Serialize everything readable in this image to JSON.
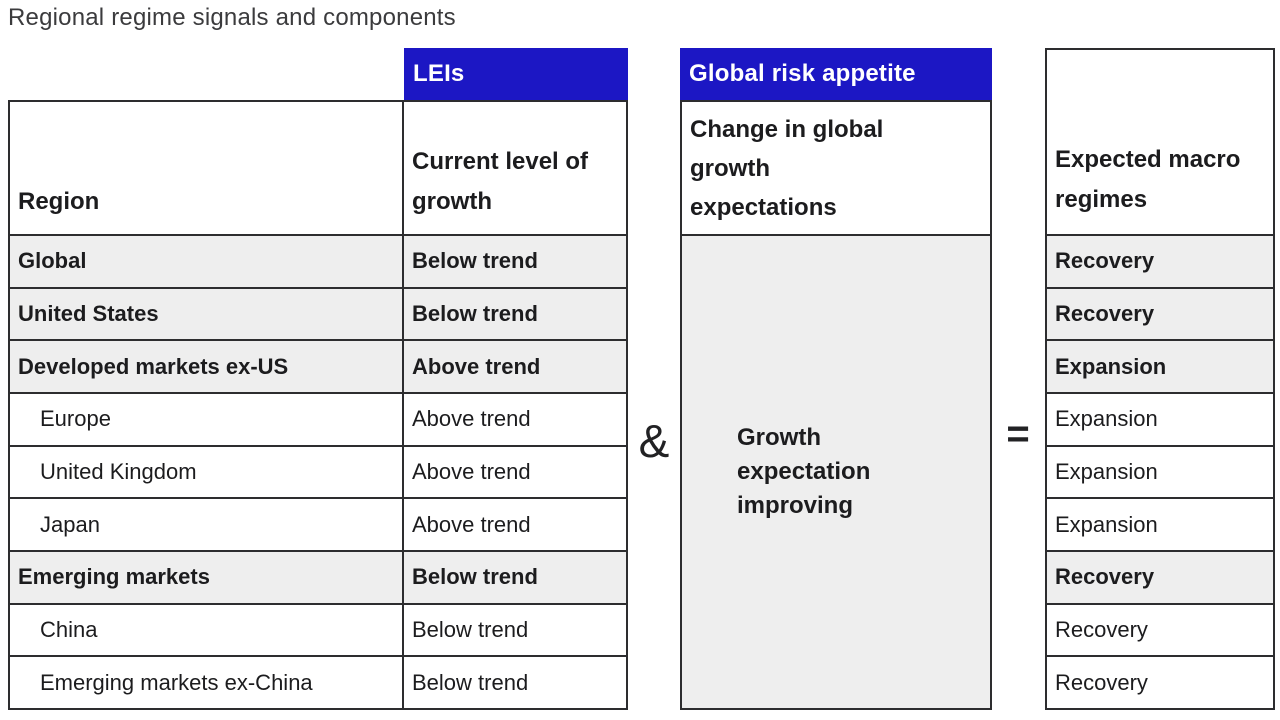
{
  "title": "Regional regime signals and components",
  "badges": {
    "leis": "LEIs",
    "risk_appetite": "Global risk appetite"
  },
  "left_table": {
    "region_header": "Region",
    "growth_header": "Current level of growth"
  },
  "risk_column": {
    "header": "Change in global growth expectations",
    "value": "Growth expectation improving"
  },
  "regimes_column": {
    "header": "Expected macro regimes"
  },
  "operators": {
    "and": "&",
    "equals": "="
  },
  "colors": {
    "accent_blue": "#1c17c4",
    "row_band_gray": "#eeeeee",
    "border_dark": "#2d2d2f"
  },
  "chart_data": {
    "type": "table",
    "title": "Regional regime signals and components",
    "columns": [
      "Region",
      "Current level of growth (LEIs)",
      "Change in global growth expectations (Global risk appetite)",
      "Expected macro regimes"
    ],
    "shared_risk_value": "Growth expectation improving",
    "rows": [
      {
        "region": "Global",
        "growth": "Below trend",
        "regime": "Recovery",
        "emphasis": true
      },
      {
        "region": "United States",
        "growth": "Below trend",
        "regime": "Recovery",
        "emphasis": true
      },
      {
        "region": "Developed markets ex-US",
        "growth": "Above trend",
        "regime": "Expansion",
        "emphasis": true
      },
      {
        "region": "Europe",
        "growth": "Above trend",
        "regime": "Expansion",
        "emphasis": false
      },
      {
        "region": "United Kingdom",
        "growth": "Above trend",
        "regime": "Expansion",
        "emphasis": false
      },
      {
        "region": "Japan",
        "growth": "Above trend",
        "regime": "Expansion",
        "emphasis": false
      },
      {
        "region": "Emerging markets",
        "growth": "Below trend",
        "regime": "Recovery",
        "emphasis": true
      },
      {
        "region": "China",
        "growth": "Below trend",
        "regime": "Recovery",
        "emphasis": false
      },
      {
        "region": "Emerging markets ex-China",
        "growth": "Below trend",
        "regime": "Recovery",
        "emphasis": false
      }
    ]
  }
}
